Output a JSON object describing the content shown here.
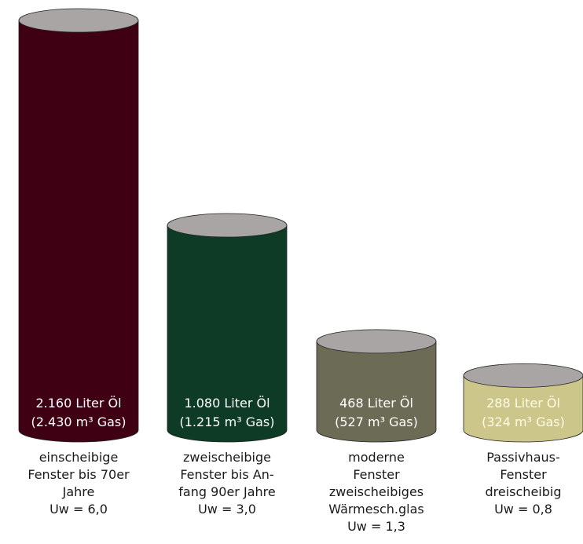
{
  "chart_data": {
    "type": "bar",
    "style": "cylinder",
    "categories": [
      [
        "einscheibige",
        "Fenster bis 70er",
        "Jahre",
        "Uw = 6,0"
      ],
      [
        "zweischeibige",
        "Fenster bis An-",
        "fang 90er Jahre",
        "Uw = 3,0"
      ],
      [
        "moderne",
        "Fenster",
        "zweischeibiges",
        "Wärmesch.glas",
        "Uw = 1,3"
      ],
      [
        "Passivhaus-",
        "Fenster",
        "dreischeibig",
        "Uw = 0,8"
      ]
    ],
    "values": [
      2160,
      1080,
      468,
      288
    ],
    "value_labels": [
      [
        "2.160 Liter Öl",
        "(2.430 m³ Gas)"
      ],
      [
        "1.080 Liter Öl",
        "(1.215 m³ Gas)"
      ],
      [
        "468 Liter Öl",
        "(527 m³ Gas)"
      ],
      [
        "288 Liter Öl",
        "(324 m³ Gas)"
      ]
    ],
    "colors": [
      "#3f0013",
      "#0d3b26",
      "#6c6b56",
      "#cdc68a"
    ],
    "top_color": "#a9a5a5",
    "label_colors": [
      "#ffffff",
      "#ffffff",
      "#ffffff",
      "#fffbe6"
    ],
    "ylim": [
      0,
      2160
    ],
    "grid": false,
    "legend": "none"
  }
}
